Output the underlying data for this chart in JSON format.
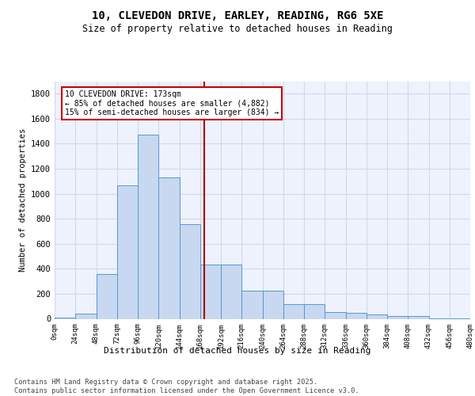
{
  "title": "10, CLEVEDON DRIVE, EARLEY, READING, RG6 5XE",
  "subtitle": "Size of property relative to detached houses in Reading",
  "xlabel": "Distribution of detached houses by size in Reading",
  "ylabel": "Number of detached properties",
  "bar_values": [
    10,
    40,
    355,
    1070,
    1470,
    1130,
    760,
    435,
    435,
    225,
    225,
    115,
    115,
    55,
    50,
    35,
    20,
    20,
    5,
    5
  ],
  "bin_labels": [
    "0sqm",
    "24sqm",
    "48sqm",
    "72sqm",
    "96sqm",
    "120sqm",
    "144sqm",
    "168sqm",
    "192sqm",
    "216sqm",
    "240sqm",
    "264sqm",
    "288sqm",
    "312sqm",
    "336sqm",
    "360sqm",
    "384sqm",
    "408sqm",
    "432sqm",
    "456sqm",
    "480sqm"
  ],
  "bar_color": "#c8d8f0",
  "bar_edge_color": "#5599cc",
  "grid_color": "#d0d8ee",
  "bg_color": "#edf2fc",
  "vline_x": 173,
  "vline_color": "#aa0000",
  "annotation_text": "10 CLEVEDON DRIVE: 173sqm\n← 85% of detached houses are smaller (4,882)\n15% of semi-detached houses are larger (834) →",
  "annotation_box_color": "#cc0000",
  "ylim": [
    0,
    1900
  ],
  "yticks": [
    0,
    200,
    400,
    600,
    800,
    1000,
    1200,
    1400,
    1600,
    1800
  ],
  "footer_text": "Contains HM Land Registry data © Crown copyright and database right 2025.\nContains public sector information licensed under the Open Government Licence v3.0.",
  "bin_width": 24,
  "num_bins": 20
}
